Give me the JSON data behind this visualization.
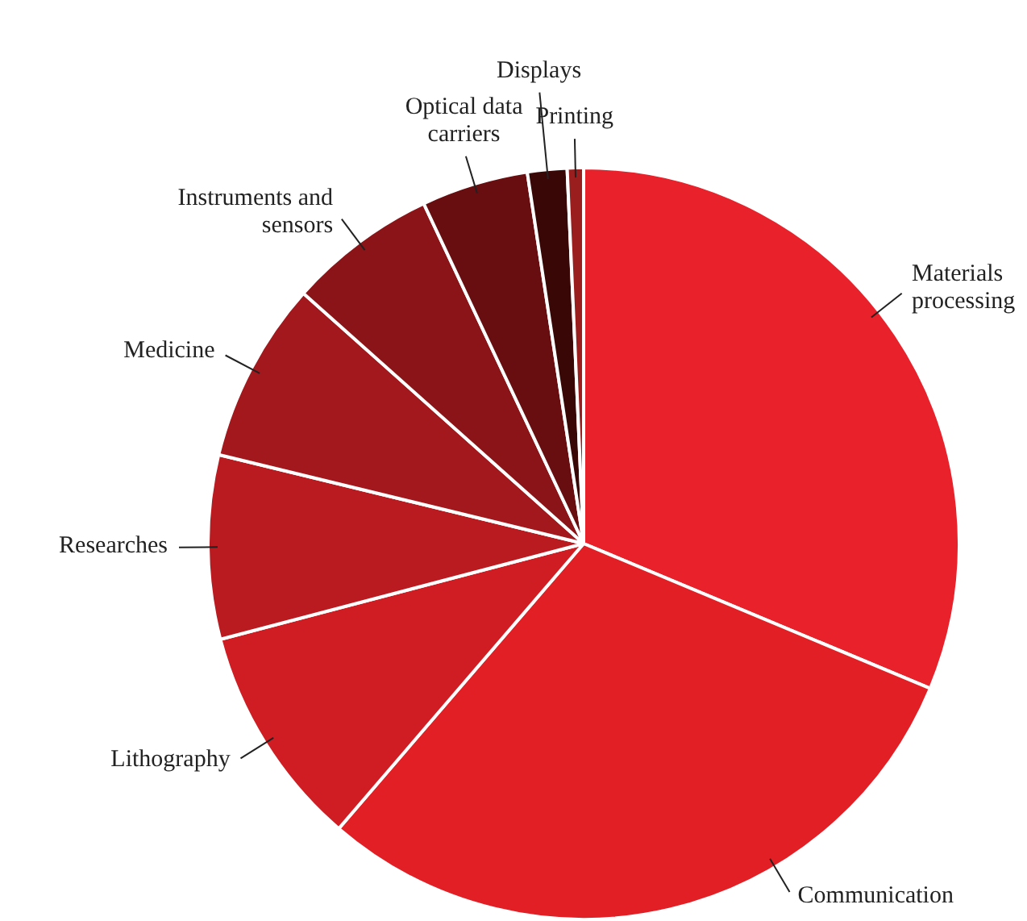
{
  "chart_data": {
    "type": "pie",
    "categories": [
      "Materials processing",
      "Communication",
      "Lithography",
      "Researches",
      "Medicine",
      "Instruments and sensors",
      "Optical data carriers",
      "Displays",
      "Printing"
    ],
    "values": [
      31.3,
      30,
      9.6,
      7.9,
      7.8,
      6.4,
      4.6,
      1.7,
      0.7
    ],
    "colors": [
      "#e8212b",
      "#e31f26",
      "#d01d23",
      "#b91b20",
      "#a3181c",
      "#8a1417",
      "#690e10",
      "#3a0707",
      "#9a1e1e"
    ],
    "legend": false
  }
}
